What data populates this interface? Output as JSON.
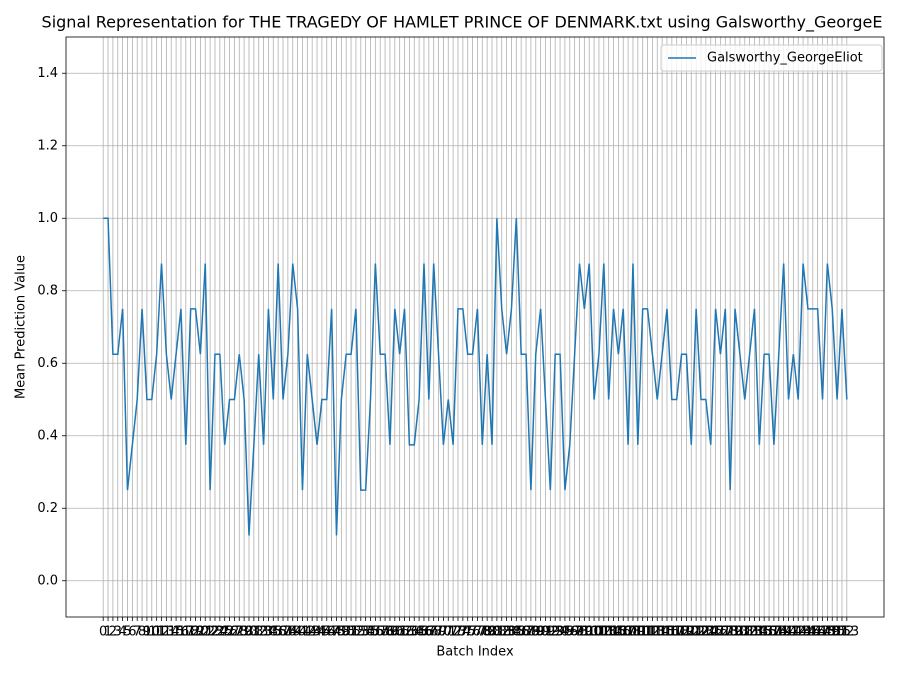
{
  "chart_data": {
    "type": "line",
    "title": "Signal Representation for THE TRAGEDY OF HAMLET PRINCE OF DENMARK.txt using Galsworthy_GeorgeE",
    "x_label": "Batch Index",
    "y_label": "Mean Prediction Value",
    "x": [
      0,
      1,
      2,
      3,
      4,
      5,
      6,
      7,
      8,
      9,
      10,
      11,
      12,
      13,
      14,
      15,
      16,
      17,
      18,
      19,
      20,
      21,
      22,
      23,
      24,
      25,
      26,
      27,
      28,
      29,
      30,
      31,
      32,
      33,
      34,
      35,
      36,
      37,
      38,
      39,
      40,
      41,
      42,
      43,
      44,
      45,
      46,
      47,
      48,
      49,
      50,
      51,
      52,
      53,
      54,
      55,
      56,
      57,
      58,
      59,
      60,
      61,
      62,
      63,
      64,
      65,
      66,
      67,
      68,
      69,
      70,
      71,
      72,
      73,
      74,
      75,
      76,
      77,
      78,
      79,
      80,
      81,
      82,
      83,
      84,
      85,
      86,
      87,
      88,
      89,
      90,
      91,
      92,
      93,
      94,
      95,
      96,
      97,
      98,
      99,
      100,
      101,
      102,
      103,
      104,
      105,
      106,
      107,
      108,
      109,
      110,
      111,
      112,
      113,
      114,
      115,
      116,
      117,
      118,
      119,
      120,
      121,
      122,
      123,
      124,
      125,
      126,
      127,
      128,
      129,
      130,
      131,
      132,
      133,
      134,
      135,
      136,
      137,
      138,
      139,
      140,
      141,
      142,
      143,
      144,
      145,
      146,
      147,
      148,
      149,
      150,
      151,
      152,
      153
    ],
    "series": [
      {
        "name": "Galsworthy_GeorgeEliot",
        "color": "#1f77b4",
        "values": [
          1.0,
          1.0,
          0.625,
          0.625,
          0.75,
          0.25,
          0.375,
          0.5,
          0.75,
          0.5,
          0.5,
          0.625,
          0.875,
          0.625,
          0.5,
          0.625,
          0.75,
          0.375,
          0.75,
          0.75,
          0.625,
          0.875,
          0.25,
          0.625,
          0.625,
          0.375,
          0.5,
          0.5,
          0.625,
          0.5,
          0.125,
          0.375,
          0.625,
          0.375,
          0.75,
          0.5,
          0.875,
          0.5,
          0.625,
          0.875,
          0.75,
          0.25,
          0.625,
          0.5,
          0.375,
          0.5,
          0.5,
          0.75,
          0.125,
          0.5,
          0.625,
          0.625,
          0.75,
          0.25,
          0.25,
          0.5,
          0.875,
          0.625,
          0.625,
          0.375,
          0.75,
          0.625,
          0.75,
          0.375,
          0.375,
          0.5,
          0.875,
          0.5,
          0.875,
          0.625,
          0.375,
          0.5,
          0.375,
          0.75,
          0.75,
          0.625,
          0.625,
          0.75,
          0.375,
          0.625,
          0.375,
          1.0,
          0.75,
          0.625,
          0.75,
          1.0,
          0.625,
          0.625,
          0.25,
          0.625,
          0.75,
          0.5,
          0.25,
          0.625,
          0.625,
          0.25,
          0.375,
          0.625,
          0.875,
          0.75,
          0.875,
          0.5,
          0.625,
          0.875,
          0.5,
          0.75,
          0.625,
          0.75,
          0.375,
          0.875,
          0.375,
          0.75,
          0.75,
          0.625,
          0.5,
          0.625,
          0.75,
          0.5,
          0.5,
          0.625,
          0.625,
          0.375,
          0.75,
          0.5,
          0.5,
          0.375,
          0.75,
          0.625,
          0.75,
          0.25,
          0.75,
          0.625,
          0.5,
          0.625,
          0.75,
          0.375,
          0.625,
          0.625,
          0.375,
          0.625,
          0.875,
          0.5,
          0.625,
          0.5,
          0.875,
          0.75,
          0.75,
          0.75,
          0.5,
          0.875,
          0.75,
          0.5,
          0.75,
          0.5
        ]
      }
    ],
    "xlim": [
      -7.65,
      160.65
    ],
    "xticks": [
      0,
      1,
      2,
      3,
      4,
      5,
      6,
      7,
      8,
      9,
      10,
      11,
      12,
      13,
      14,
      15,
      16,
      17,
      18,
      19,
      20,
      21,
      22,
      23,
      24,
      25,
      26,
      27,
      28,
      29,
      30,
      31,
      32,
      33,
      34,
      35,
      36,
      37,
      38,
      39,
      40,
      41,
      42,
      43,
      44,
      45,
      46,
      47,
      48,
      49,
      50,
      51,
      52,
      53,
      54,
      55,
      56,
      57,
      58,
      59,
      60,
      61,
      62,
      63,
      64,
      65,
      66,
      67,
      68,
      69,
      70,
      71,
      72,
      73,
      74,
      75,
      76,
      77,
      78,
      79,
      80,
      81,
      82,
      83,
      84,
      85,
      86,
      87,
      88,
      89,
      90,
      91,
      92,
      93,
      94,
      95,
      96,
      97,
      98,
      99,
      100,
      101,
      102,
      103,
      104,
      105,
      106,
      107,
      108,
      109,
      110,
      111,
      112,
      113,
      114,
      115,
      116,
      117,
      118,
      119,
      120,
      121,
      122,
      123,
      124,
      125,
      126,
      127,
      128,
      129,
      130,
      131,
      132,
      133,
      134,
      135,
      136,
      137,
      138,
      139,
      140,
      141,
      142,
      143,
      144,
      145,
      146,
      147,
      148,
      149,
      150,
      151,
      152,
      153
    ],
    "ylim": [
      -0.1,
      1.5
    ],
    "yticks": [
      {
        "value": 0,
        "label": "0.0"
      },
      {
        "value": 0.2,
        "label": "0.2"
      },
      {
        "value": 0.4,
        "label": "0.4"
      },
      {
        "value": 0.6,
        "label": "0.6"
      },
      {
        "value": 0.8,
        "label": "0.8"
      },
      {
        "value": 1,
        "label": "1.0"
      },
      {
        "value": 1.2,
        "label": "1.2"
      },
      {
        "value": 1.4,
        "label": "1.4"
      }
    ],
    "grid": true,
    "legend": "upper right"
  }
}
